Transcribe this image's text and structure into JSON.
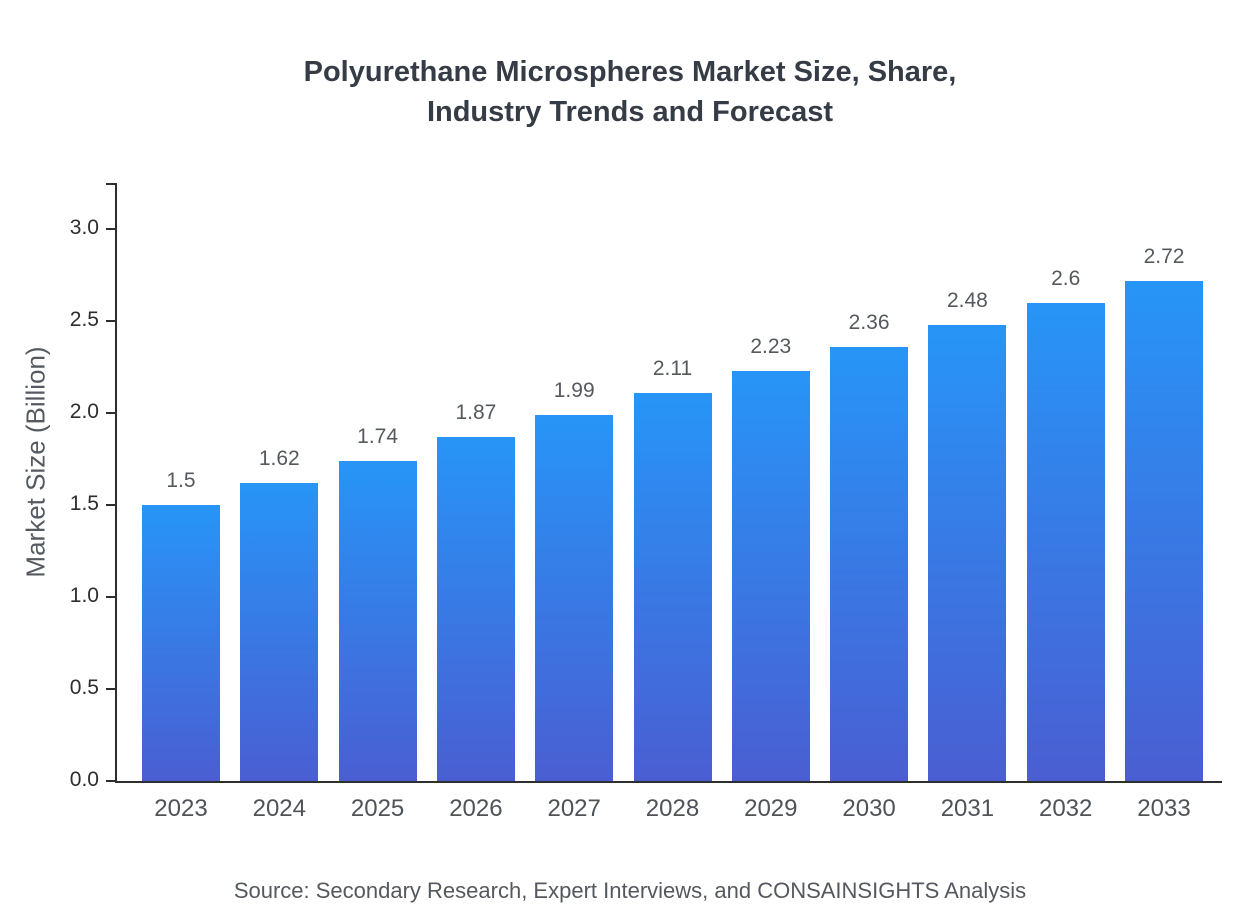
{
  "title": "Polyurethane Microspheres Market Size, Share,\nIndustry Trends and Forecast",
  "source": "Source: Secondary Research, Expert Interviews, and CONSAINSIGHTS Analysis",
  "chart_data": {
    "type": "bar",
    "title": "Polyurethane Microspheres Market Size, Share, Industry Trends and Forecast",
    "categories": [
      "2023",
      "2024",
      "2025",
      "2026",
      "2027",
      "2028",
      "2029",
      "2030",
      "2031",
      "2032",
      "2033"
    ],
    "values": [
      1.5,
      1.62,
      1.74,
      1.87,
      1.99,
      2.11,
      2.23,
      2.36,
      2.48,
      2.6,
      2.72
    ],
    "value_labels": [
      "1.5",
      "1.62",
      "1.74",
      "1.87",
      "1.99",
      "2.11",
      "2.23",
      "2.36",
      "2.48",
      "2.6",
      "2.72"
    ],
    "xlabel": "",
    "ylabel": "Market Size (Billion)",
    "ylim": [
      0.0,
      3.25
    ],
    "yticks": [
      0.0,
      0.5,
      1.0,
      1.5,
      2.0,
      2.5,
      3.0
    ],
    "grid": false,
    "legend": "none",
    "bar_gradient_top": "#2795f7",
    "bar_gradient_bottom": "#4a5ed2",
    "axis_color": "#2e2e2e"
  }
}
